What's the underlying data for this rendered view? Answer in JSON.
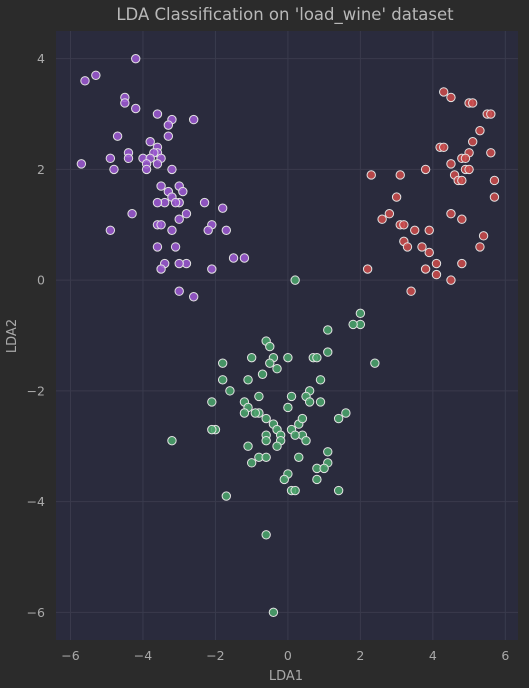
{
  "chart_data": {
    "type": "scatter",
    "title": "LDA Classification on 'load_wine' dataset",
    "xlabel": "LDA1",
    "ylabel": "LDA2",
    "xlim": [
      -6.4,
      6.35
    ],
    "ylim": [
      -6.5,
      4.5
    ],
    "xticks": [
      -6,
      -4,
      -2,
      0,
      2,
      4,
      6
    ],
    "yticks": [
      -6,
      -4,
      -2,
      0,
      2,
      4
    ],
    "grid": true,
    "background": "#2a2b3d",
    "series": [
      {
        "color": "#9b59d0",
        "points": [
          [
            -4.2,
            4.0
          ],
          [
            -5.6,
            3.6
          ],
          [
            -5.3,
            3.7
          ],
          [
            -4.5,
            3.3
          ],
          [
            -4.5,
            3.2
          ],
          [
            -4.2,
            3.1
          ],
          [
            -3.6,
            3.0
          ],
          [
            -3.2,
            2.9
          ],
          [
            -3.3,
            2.8
          ],
          [
            -3.3,
            2.6
          ],
          [
            -2.6,
            2.9
          ],
          [
            -4.7,
            2.6
          ],
          [
            -3.8,
            2.5
          ],
          [
            -3.6,
            2.4
          ],
          [
            -3.6,
            2.3
          ],
          [
            -3.7,
            2.3
          ],
          [
            -4.9,
            2.2
          ],
          [
            -4.4,
            2.3
          ],
          [
            -4.4,
            2.2
          ],
          [
            -4.0,
            2.2
          ],
          [
            -3.8,
            2.2
          ],
          [
            -3.5,
            2.2
          ],
          [
            -3.6,
            2.1
          ],
          [
            -3.9,
            2.1
          ],
          [
            -3.9,
            2.0
          ],
          [
            -4.8,
            2.0
          ],
          [
            -5.7,
            2.1
          ],
          [
            -3.2,
            2.0
          ],
          [
            -3.5,
            1.7
          ],
          [
            -3.3,
            1.6
          ],
          [
            -3.0,
            1.7
          ],
          [
            -2.9,
            1.6
          ],
          [
            -3.2,
            1.5
          ],
          [
            -3.4,
            1.4
          ],
          [
            -3.0,
            1.4
          ],
          [
            -3.1,
            1.4
          ],
          [
            -3.6,
            1.4
          ],
          [
            -2.3,
            1.4
          ],
          [
            -1.8,
            1.3
          ],
          [
            -2.8,
            1.2
          ],
          [
            -4.3,
            1.2
          ],
          [
            -3.0,
            1.1
          ],
          [
            -3.6,
            1.0
          ],
          [
            -3.5,
            1.0
          ],
          [
            -3.2,
            0.9
          ],
          [
            -4.9,
            0.9
          ],
          [
            -2.1,
            1.0
          ],
          [
            -2.2,
            0.9
          ],
          [
            -1.7,
            0.9
          ],
          [
            -3.1,
            0.6
          ],
          [
            -3.6,
            0.6
          ],
          [
            -1.5,
            0.4
          ],
          [
            -1.2,
            0.4
          ],
          [
            -3.4,
            0.3
          ],
          [
            -2.8,
            0.3
          ],
          [
            -3.0,
            0.3
          ],
          [
            -3.5,
            0.2
          ],
          [
            -2.1,
            0.2
          ],
          [
            -3.0,
            -0.2
          ],
          [
            -2.6,
            -0.3
          ]
        ]
      },
      {
        "color": "#c94b4b",
        "points": [
          [
            4.3,
            3.4
          ],
          [
            4.5,
            3.3
          ],
          [
            5.0,
            3.2
          ],
          [
            5.1,
            3.2
          ],
          [
            5.5,
            3.0
          ],
          [
            5.6,
            3.0
          ],
          [
            5.3,
            2.7
          ],
          [
            5.1,
            2.5
          ],
          [
            4.2,
            2.4
          ],
          [
            4.3,
            2.4
          ],
          [
            5.0,
            2.3
          ],
          [
            4.8,
            2.2
          ],
          [
            5.6,
            2.3
          ],
          [
            4.9,
            2.2
          ],
          [
            4.5,
            2.1
          ],
          [
            4.9,
            2.0
          ],
          [
            5.0,
            2.0
          ],
          [
            3.8,
            2.0
          ],
          [
            3.1,
            1.9
          ],
          [
            2.3,
            1.9
          ],
          [
            4.6,
            1.9
          ],
          [
            4.7,
            1.8
          ],
          [
            4.8,
            1.8
          ],
          [
            5.7,
            1.8
          ],
          [
            3.0,
            1.5
          ],
          [
            5.7,
            1.5
          ],
          [
            2.6,
            1.1
          ],
          [
            2.8,
            1.2
          ],
          [
            3.1,
            1.0
          ],
          [
            3.2,
            1.0
          ],
          [
            4.5,
            1.2
          ],
          [
            4.8,
            1.1
          ],
          [
            3.5,
            0.9
          ],
          [
            3.9,
            0.9
          ],
          [
            3.2,
            0.7
          ],
          [
            3.3,
            0.6
          ],
          [
            3.7,
            0.6
          ],
          [
            3.9,
            0.5
          ],
          [
            5.4,
            0.8
          ],
          [
            5.3,
            0.6
          ],
          [
            4.1,
            0.3
          ],
          [
            3.8,
            0.2
          ],
          [
            4.1,
            0.1
          ],
          [
            2.2,
            0.2
          ],
          [
            4.8,
            0.3
          ],
          [
            4.5,
            0.0
          ],
          [
            3.4,
            -0.2
          ]
        ]
      },
      {
        "color": "#4aa36b",
        "points": [
          [
            0.2,
            0.0
          ],
          [
            2.0,
            -0.6
          ],
          [
            2.0,
            -0.8
          ],
          [
            1.8,
            -0.8
          ],
          [
            1.1,
            -0.9
          ],
          [
            -0.6,
            -1.1
          ],
          [
            -0.5,
            -1.2
          ],
          [
            -0.4,
            -1.4
          ],
          [
            -1.0,
            -1.4
          ],
          [
            0.0,
            -1.4
          ],
          [
            0.7,
            -1.4
          ],
          [
            0.8,
            -1.4
          ],
          [
            1.1,
            -1.3
          ],
          [
            2.4,
            -1.5
          ],
          [
            -1.8,
            -1.5
          ],
          [
            -0.5,
            -1.5
          ],
          [
            -0.3,
            -1.6
          ],
          [
            -0.7,
            -1.7
          ],
          [
            -1.8,
            -1.8
          ],
          [
            -1.1,
            -1.8
          ],
          [
            0.9,
            -1.8
          ],
          [
            -1.6,
            -2.0
          ],
          [
            0.6,
            -2.0
          ],
          [
            -0.8,
            -2.1
          ],
          [
            0.1,
            -2.1
          ],
          [
            0.5,
            -2.1
          ],
          [
            0.6,
            -2.2
          ],
          [
            -2.1,
            -2.2
          ],
          [
            0.9,
            -2.2
          ],
          [
            -1.2,
            -2.2
          ],
          [
            -1.1,
            -2.3
          ],
          [
            -1.2,
            -2.4
          ],
          [
            -0.8,
            -2.4
          ],
          [
            -0.9,
            -2.4
          ],
          [
            0.0,
            -2.3
          ],
          [
            -0.6,
            -2.5
          ],
          [
            0.3,
            -2.6
          ],
          [
            1.6,
            -2.4
          ],
          [
            1.4,
            -2.5
          ],
          [
            0.4,
            -2.5
          ],
          [
            -0.4,
            -2.6
          ],
          [
            -0.3,
            -2.7
          ],
          [
            -0.2,
            -2.8
          ],
          [
            0.1,
            -2.7
          ],
          [
            -0.6,
            -2.8
          ],
          [
            0.4,
            -2.8
          ],
          [
            -2.0,
            -2.7
          ],
          [
            -2.1,
            -2.7
          ],
          [
            0.2,
            -2.8
          ],
          [
            -0.6,
            -2.9
          ],
          [
            0.5,
            -2.9
          ],
          [
            -3.2,
            -2.9
          ],
          [
            -0.2,
            -2.9
          ],
          [
            -0.3,
            -3.0
          ],
          [
            -1.1,
            -3.0
          ],
          [
            1.1,
            -3.1
          ],
          [
            -0.8,
            -3.2
          ],
          [
            -0.6,
            -3.2
          ],
          [
            0.3,
            -3.2
          ],
          [
            -1.0,
            -3.3
          ],
          [
            1.1,
            -3.3
          ],
          [
            0.8,
            -3.4
          ],
          [
            1.0,
            -3.4
          ],
          [
            0.0,
            -3.5
          ],
          [
            -0.1,
            -3.6
          ],
          [
            0.8,
            -3.6
          ],
          [
            0.1,
            -3.8
          ],
          [
            0.2,
            -3.8
          ],
          [
            1.4,
            -3.8
          ],
          [
            -1.7,
            -3.9
          ],
          [
            -0.6,
            -4.6
          ],
          [
            -0.4,
            -6.0
          ]
        ]
      }
    ]
  }
}
